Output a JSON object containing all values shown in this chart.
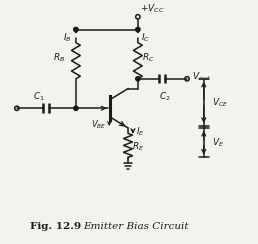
{
  "title": "Fig. 12.9",
  "subtitle": "Emitter Bias Circuit",
  "bg_color": "#f2f2ee",
  "line_color": "#1a1a1a",
  "figsize": [
    2.58,
    2.44
  ],
  "dpi": 100
}
